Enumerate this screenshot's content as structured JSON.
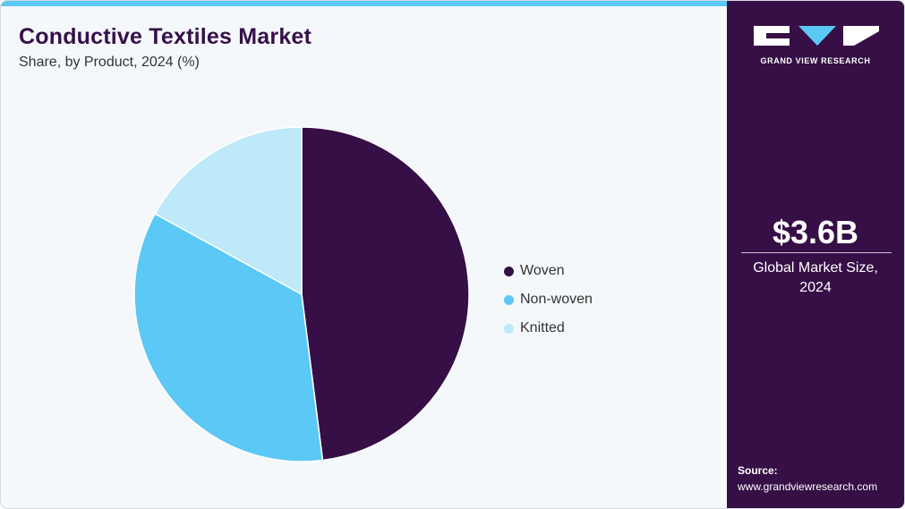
{
  "header": {
    "title": "Conductive Textiles Market",
    "subtitle": "Share, by Product, 2024 (%)"
  },
  "chart_data": {
    "type": "pie",
    "title": "Conductive Textiles Market",
    "subtitle": "Share, by Product, 2024 (%)",
    "categories": [
      "Woven",
      "Non-woven",
      "Knitted"
    ],
    "values": [
      48,
      35,
      17
    ],
    "colors": [
      "#360f46",
      "#5bc8f5",
      "#bde9f9"
    ],
    "legend_position": "right"
  },
  "sidebar": {
    "brand": "GRAND VIEW RESEARCH",
    "market_value": "$3.6B",
    "market_label_line1": "Global Market Size,",
    "market_label_line2": "2024",
    "source_label": "Source:",
    "source_url": "www.grandviewresearch.com"
  }
}
